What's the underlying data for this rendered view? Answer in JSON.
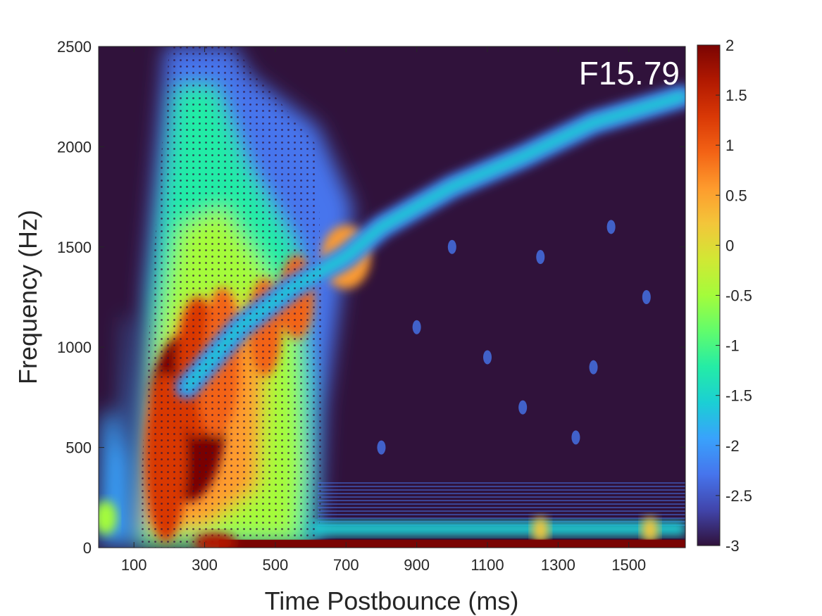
{
  "chart_data": {
    "type": "heatmap",
    "title": "",
    "xlabel": "Time Postbounce (ms)",
    "ylabel": "Frequency (Hz)",
    "annotation": "F15.79",
    "xlim": [
      0,
      1660
    ],
    "ylim": [
      0,
      2500
    ],
    "x_ticks": [
      100,
      300,
      500,
      700,
      900,
      1100,
      1300,
      1500
    ],
    "y_ticks": [
      0,
      500,
      1000,
      1500,
      2000,
      2500
    ],
    "colorbar": {
      "colormap": "turbo",
      "range": [
        -3,
        2
      ],
      "ticks": [
        2,
        1.5,
        1,
        0.5,
        0,
        -0.5,
        -1,
        -1.5,
        -2,
        -2.5,
        -3
      ],
      "colors": [
        "#30123b",
        "#4145ab",
        "#4675ed",
        "#39a2fc",
        "#1bcfd4",
        "#24eca6",
        "#61fc6c",
        "#a4fc3b",
        "#d1e834",
        "#f3c63a",
        "#fe9b2d",
        "#f36315",
        "#d93806",
        "#b11901",
        "#7a0403"
      ]
    },
    "features": [
      {
        "name": "main broadband emission",
        "t_range": [
          100,
          620
        ],
        "f_range": [
          0,
          2500
        ],
        "level": -0.5
      },
      {
        "name": "early low-frequency blob",
        "t": 15,
        "f": 150,
        "level": -0.8
      },
      {
        "name": "peak emission",
        "t": 250,
        "f": 650,
        "level": 2
      },
      {
        "name": "dominant mode ridge",
        "points": [
          [
            250,
            800
          ],
          [
            400,
            1100
          ],
          [
            550,
            1300
          ],
          [
            700,
            1450
          ],
          [
            800,
            1600
          ],
          [
            1000,
            1800
          ],
          [
            1200,
            1950
          ],
          [
            1400,
            2120
          ],
          [
            1650,
            2250
          ]
        ]
      },
      {
        "name": "low-frequency band",
        "t_range": [
          300,
          1660
        ],
        "f_range": [
          0,
          40
        ],
        "level": 2
      },
      {
        "name": "weak band",
        "t_range": [
          600,
          1660
        ],
        "f_range": [
          60,
          130
        ],
        "level": -1.5
      }
    ]
  }
}
